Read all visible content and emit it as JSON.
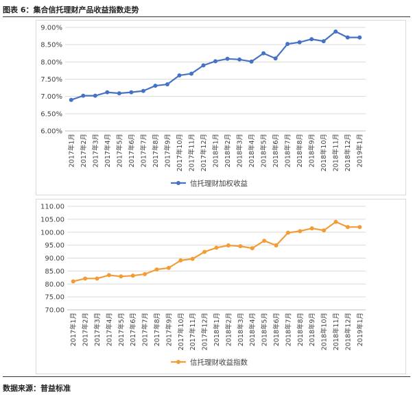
{
  "figure": {
    "title": "图表 6：集合信托理财产品收益指数走势",
    "source": "数据来源：普益标准"
  },
  "colors": {
    "series_blue": "#4472c4",
    "series_orange": "#f39c36",
    "grid": "#d9d9d9",
    "axis_text": "#404040"
  },
  "chart_data": [
    {
      "type": "line",
      "title": "",
      "xlabel": "",
      "ylabel": "",
      "categories": [
        "2017年1月",
        "2017年2月",
        "2017年3月",
        "2017年4月",
        "2017年5月",
        "2017年6月",
        "2017年7月",
        "2017年8月",
        "2017年9月",
        "2017年10月",
        "2017年11月",
        "2017年12月",
        "2018年1月",
        "2018年2月",
        "2018年3月",
        "2018年4月",
        "2018年5月",
        "2018年6月",
        "2018年7月",
        "2018年8月",
        "2018年9月",
        "2018年10月",
        "2018年11月",
        "2018年12月",
        "2019年1月"
      ],
      "series": [
        {
          "name": "信托理财加权收益",
          "values": [
            6.9,
            7.02,
            7.02,
            7.12,
            7.09,
            7.12,
            7.16,
            7.31,
            7.35,
            7.61,
            7.66,
            7.9,
            8.02,
            8.09,
            8.07,
            8.01,
            8.25,
            8.1,
            8.52,
            8.57,
            8.66,
            8.6,
            8.88,
            8.71,
            8.71
          ]
        }
      ],
      "ylim": [
        6.0,
        9.0
      ],
      "yticks": [
        "6.00%",
        "6.50%",
        "7.00%",
        "7.50%",
        "8.00%",
        "8.50%",
        "9.00%"
      ],
      "legend": "bottom"
    },
    {
      "type": "line",
      "title": "",
      "xlabel": "",
      "ylabel": "",
      "categories": [
        "2017年1月",
        "2017年2月",
        "2017年3月",
        "2017年4月",
        "2017年5月",
        "2017年6月",
        "2017年7月",
        "2017年8月",
        "2017年9月",
        "2017年10月",
        "2017年11月",
        "2017年12月",
        "2018年1月",
        "2018年2月",
        "2018年3月",
        "2018年4月",
        "2018年5月",
        "2018年6月",
        "2018年7月",
        "2018年8月",
        "2018年9月",
        "2018年10月",
        "2018年11月",
        "2018年12月",
        "2019年1月"
      ],
      "series": [
        {
          "name": "信托理财收益指数",
          "values": [
            81.0,
            82.1,
            82.1,
            83.4,
            82.9,
            83.2,
            83.8,
            85.6,
            86.2,
            89.1,
            89.7,
            92.4,
            94.0,
            94.9,
            94.6,
            93.8,
            96.7,
            94.9,
            99.8,
            100.4,
            101.5,
            100.7,
            104.0,
            102.0,
            102.0
          ]
        }
      ],
      "ylim": [
        70,
        110
      ],
      "yticks": [
        "70.00",
        "75.00",
        "80.00",
        "85.00",
        "90.00",
        "95.00",
        "100.00",
        "105.00",
        "110.00"
      ],
      "legend": "bottom"
    }
  ]
}
